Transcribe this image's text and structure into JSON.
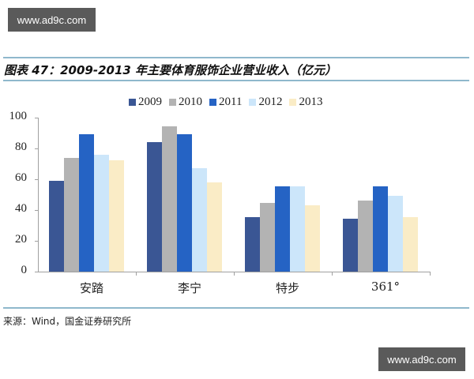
{
  "watermark": {
    "text": "www.ad9c.com"
  },
  "title": "图表 47：2009-2013 年主要体育服饰企业营业收入（亿元）",
  "source": "来源：Wind，国金证券研究所",
  "colors": {
    "2009": "#3a5694",
    "2010": "#b3b3b3",
    "2011": "#2563c4",
    "2012": "#cce6fa",
    "2013": "#faecc6",
    "rule": "#8fb8cc",
    "axis": "#a0a0a0"
  },
  "chart_data": {
    "type": "bar",
    "title": "图表 47：2009-2013 年主要体育服饰企业营业收入（亿元）",
    "xlabel": "",
    "ylabel": "",
    "ylim": [
      0,
      100
    ],
    "yticks": [
      "0",
      "20",
      "40",
      "60",
      "80",
      "100"
    ],
    "grid": false,
    "legend_position": "top",
    "categories": [
      "安踏",
      "李宁",
      "特步",
      "361°"
    ],
    "series": [
      {
        "name": "2009",
        "values": [
          59,
          84,
          35.5,
          34.5
        ]
      },
      {
        "name": "2010",
        "values": [
          74,
          94.5,
          44.5,
          46
        ]
      },
      {
        "name": "2011",
        "values": [
          89,
          89,
          55.5,
          55.5
        ]
      },
      {
        "name": "2012",
        "values": [
          76,
          67,
          55.5,
          49
        ]
      },
      {
        "name": "2013",
        "values": [
          72.5,
          58,
          43,
          35.5
        ]
      }
    ]
  }
}
